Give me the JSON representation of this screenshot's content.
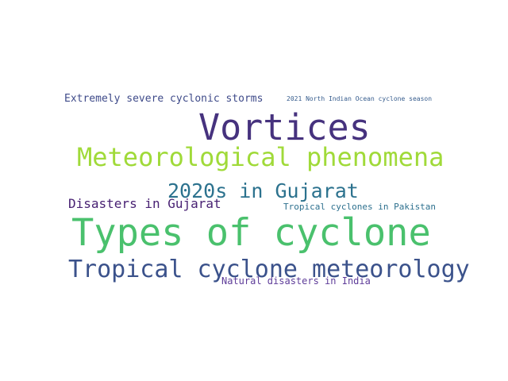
{
  "word_cloud": {
    "words": [
      {
        "text": "Vortices",
        "color": "#46327e"
      },
      {
        "text": "Types of cyclone",
        "color": "#4ac16d"
      },
      {
        "text": "Meteorological phenomena",
        "color": "#a0da39"
      },
      {
        "text": "Tropical cyclone meteorology",
        "color": "#3b528b"
      },
      {
        "text": "2020s in Gujarat",
        "color": "#2c728e"
      },
      {
        "text": "Disasters in Gujarat",
        "color": "#482173"
      },
      {
        "text": "Extremely severe cyclonic storms",
        "color": "#3e4a89"
      },
      {
        "text": "2021 North Indian Ocean cyclone season",
        "color": "#365c8d"
      },
      {
        "text": "Tropical cyclones in Pakistan",
        "color": "#2d708e"
      },
      {
        "text": "Natural disasters in India",
        "color": "#5e3c99"
      }
    ]
  }
}
